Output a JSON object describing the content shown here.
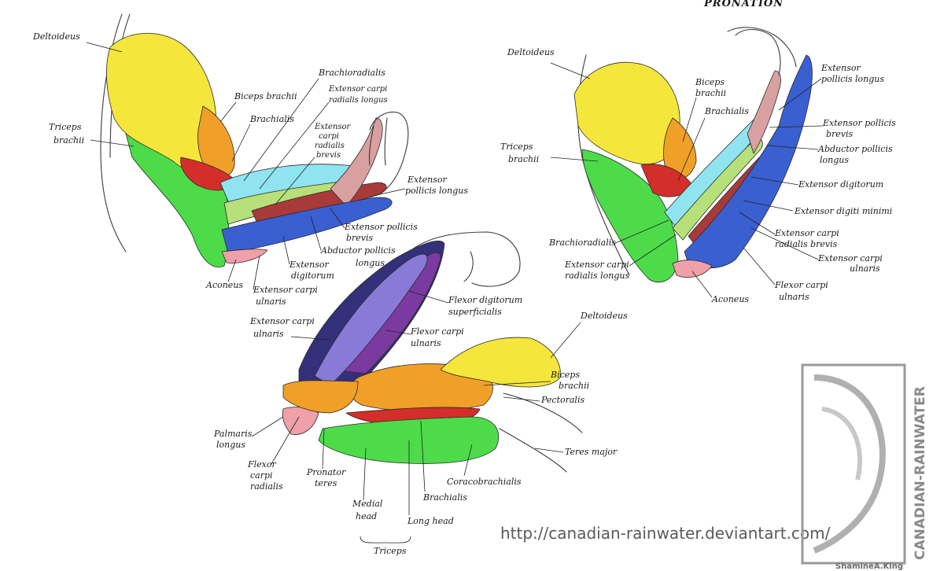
{
  "header": {
    "pronation_title": "PRONATION"
  },
  "arm_left": {
    "deltoideus": "Deltoideus",
    "biceps_brachii": "Biceps brachii",
    "brachialis": "Brachialis",
    "brachioradialis": "Brachioradialis",
    "ecr_longus": [
      "Extensor carpi",
      "radialis longus"
    ],
    "ecr_brevis": [
      "Extensor",
      "carpi",
      "radialis",
      "brevis"
    ],
    "triceps": [
      "Triceps",
      "brachii"
    ],
    "epl": [
      "Extensor",
      "pollicis longus"
    ],
    "epb": [
      "Extensor pollicis",
      "brevis"
    ],
    "apl": [
      "Abductor pollicis",
      "longus"
    ],
    "ext_digitorum": [
      "Extensor",
      "digitorum"
    ],
    "ecu": [
      "Extensor carpi",
      "ulnaris"
    ],
    "anconeus": "Aconeus"
  },
  "arm_right": {
    "deltoideus": "Deltoideus",
    "biceps": [
      "Biceps",
      "brachii"
    ],
    "brachialis": "Brachialis",
    "triceps": [
      "Triceps",
      "brachii"
    ],
    "epl": [
      "Extensor",
      "pollicis longus"
    ],
    "epb": [
      "Extensor pollicis",
      "brevis"
    ],
    "apl": [
      "Abductor pollicis",
      "longus"
    ],
    "ext_digitorum": "Extensor digitorum",
    "edm": "Extensor digiti minimi",
    "ecrb": [
      "Extensor carpi",
      "radialis brevis"
    ],
    "ecu": [
      "Extensor carpi",
      "ulnaris"
    ],
    "brachioradialis": "Brachioradialis",
    "ecrl": [
      "Extensor carpi",
      "radialis longus"
    ],
    "fcu": [
      "Flexor carpi",
      "ulnaris"
    ],
    "anconeus": "Aconeus"
  },
  "arm_bottom": {
    "fds": [
      "Flexor digitorum",
      "superficialis"
    ],
    "fcu": [
      "Flexor carpi",
      "ulnaris"
    ],
    "ecu": [
      "Extensor carpi",
      "ulnaris"
    ],
    "deltoideus": "Deltoideus",
    "biceps": [
      "Biceps",
      "brachii"
    ],
    "pectoralis": "Pectoralis",
    "teres_major": "Teres major",
    "palmaris": [
      "Palmaris",
      "longus"
    ],
    "fcr": [
      "Flexor",
      "carpi",
      "radialis"
    ],
    "pronator": [
      "Pronator",
      "teres"
    ],
    "medial_head": [
      "Medial",
      "head"
    ],
    "long_head": "Long head",
    "brachialis": "Brachialis",
    "coracobrachialis": "Coracobrachialis",
    "triceps_group": "Triceps"
  },
  "watermark": {
    "url": "http://canadian-rainwater.deviantart.com/",
    "brand": "CANADIAN-RAINWATER",
    "signature": "ShamineA.King"
  },
  "colors": {
    "deltoid": "#f5e63c",
    "biceps": "#f0a028",
    "brachialis": "#d42e2a",
    "triceps": "#4ddb4a",
    "brachioradialis": "#8fe4f0",
    "ecrl": "#b8e07a",
    "ecrb": "#a83a3a",
    "extensor_blue": "#3a5fd0",
    "thumb_pink": "#d8a0a0",
    "anconeus_pink": "#f0a0a8",
    "fds_purple": "#7a3aa0",
    "fcu_indigo": "#35307a",
    "violet": "#8a7ad8"
  }
}
